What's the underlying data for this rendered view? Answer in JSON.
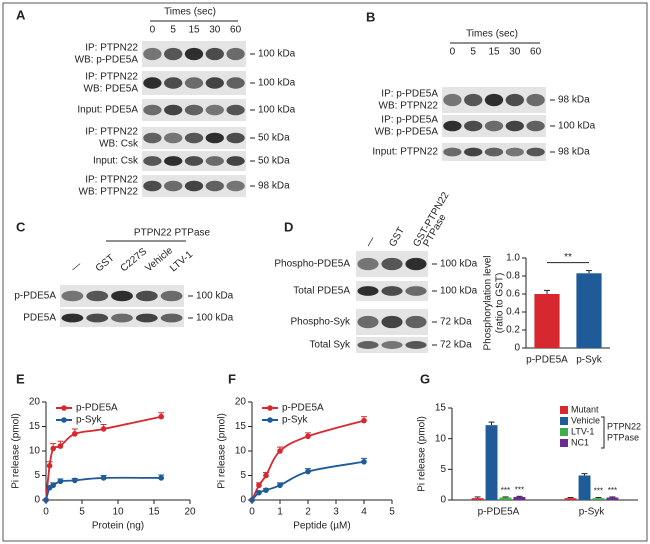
{
  "blots": [
    {
      "letter": "A",
      "header": "Times (sec)",
      "lanes": [
        "0",
        "5",
        "15",
        "30",
        "60"
      ],
      "rows": [
        {
          "label": [
            "IP: PTPN22",
            "WB: p-PDE5A"
          ],
          "marker": "100 kDa"
        },
        {
          "label": [
            "IP: PTPN22",
            "WB: PDE5A"
          ],
          "marker": "100 kDa"
        },
        {
          "label": [
            "Input: PDE5A"
          ],
          "marker": "100 kDa"
        },
        {
          "label": [
            "IP: PTPN22",
            "WB: Csk"
          ],
          "marker": "50 kDa"
        },
        {
          "label": [
            "Input: Csk"
          ],
          "marker": "50 kDa"
        },
        {
          "label": [
            "IP: PTPN22",
            "WB: PTPN22"
          ],
          "marker": "98 kDa"
        }
      ]
    },
    {
      "letter": "B",
      "header": "Times (sec)",
      "lanes": [
        "0",
        "5",
        "15",
        "30",
        "60"
      ],
      "rows": [
        {
          "label": [
            "IP: p-PDE5A",
            "WB: PTPN22"
          ],
          "marker": "98 kDa"
        },
        {
          "label": [
            "IP: p-PDE5A",
            "WB: p-PDE5A"
          ],
          "marker": "100 kDa"
        },
        {
          "label": [
            "Input: PTPN22"
          ],
          "marker": "98 kDa"
        }
      ]
    },
    {
      "letter": "C",
      "header": "PTPN22 PTPase",
      "lanes": [
        "—",
        "GST",
        "C227S",
        "Vehicle",
        "LTV-1"
      ],
      "rows": [
        {
          "label": [
            "p-PDE5A"
          ],
          "marker": "100 kDa"
        },
        {
          "label": [
            "PDE5A"
          ],
          "marker": "100 kDa"
        }
      ]
    },
    {
      "letter": "D",
      "lanes": [
        "—",
        "GST",
        [
          "GST-PTPN22",
          "PTPase"
        ]
      ],
      "rows": [
        {
          "label": [
            "Phospho-PDE5A"
          ],
          "marker": "100 kDa"
        },
        {
          "label": [
            "Total PDE5A"
          ],
          "marker": "100 kDa"
        },
        {
          "label": [
            "Phospho-Syk"
          ],
          "marker": "72 kDa"
        },
        {
          "label": [
            "Total Syk"
          ],
          "marker": "72 kDa"
        }
      ]
    }
  ],
  "chart_data": [
    {
      "type": "bar",
      "categories": [
        "p-PDE5A",
        "p-Syk"
      ],
      "values": [
        0.6,
        0.83
      ],
      "errors": [
        0.04,
        0.03
      ],
      "colors": [
        "#d7282f",
        "#1f5b99"
      ],
      "ylabel": [
        "Phosphorylation level",
        "(ratio to GST)"
      ],
      "ylim": [
        0,
        1
      ],
      "yticks": [
        0,
        0.2,
        0.4,
        0.6,
        0.8,
        {
          "value": 1,
          "label": "1.0"
        }
      ],
      "annotation": "**"
    },
    {
      "type": "scatter",
      "letter": "E",
      "xlabel": "Protein (ng)",
      "ylabel": "Pi release (pmol)",
      "x": [
        0,
        0.5,
        1,
        2,
        4,
        8,
        16
      ],
      "series": [
        {
          "name": "p-PDE5A",
          "color": "#d7282f",
          "values": [
            0,
            7,
            10.5,
            11,
            13.5,
            14.5,
            17
          ],
          "errors": [
            0,
            0.8,
            1,
            1,
            1,
            0.9,
            0.8
          ]
        },
        {
          "name": "p-Syk",
          "color": "#1f5b99",
          "values": [
            0,
            2.5,
            3,
            3.8,
            4,
            4.5,
            4.5
          ],
          "errors": [
            0,
            0.4,
            0.5,
            0.5,
            0.4,
            0.5,
            0.6
          ]
        }
      ],
      "xlim": [
        0,
        20
      ],
      "xticks": [
        0,
        5,
        10,
        15,
        20
      ],
      "ylim": [
        0,
        20
      ],
      "yticks": [
        0,
        5,
        10,
        15,
        20
      ]
    },
    {
      "type": "scatter",
      "letter": "F",
      "xlabel": "Peptide (µM)",
      "ylabel": "Pi release (pmol)",
      "x": [
        0,
        0.25,
        0.5,
        1,
        2,
        4
      ],
      "series": [
        {
          "name": "p-PDE5A",
          "color": "#d7282f",
          "values": [
            0,
            3,
            5,
            10,
            13,
            16.2
          ],
          "errors": [
            0,
            0.5,
            0.6,
            0.8,
            0.7,
            0.8
          ]
        },
        {
          "name": "p-Syk",
          "color": "#1f5b99",
          "values": [
            0,
            1.5,
            2,
            3,
            5.8,
            7.8
          ],
          "errors": [
            0,
            0.3,
            0.3,
            0.5,
            0.6,
            0.7
          ]
        }
      ],
      "xlim": [
        0,
        5
      ],
      "xticks": [
        0,
        1,
        2,
        3,
        4,
        5
      ],
      "ylim": [
        0,
        20
      ],
      "yticks": [
        0,
        5,
        10,
        15,
        20
      ]
    },
    {
      "type": "grouped_bar",
      "letter": "G",
      "ylabel": "Pi release (pmol)",
      "categories": [
        "p-PDE5A",
        "p-Syk"
      ],
      "legend_group": [
        "PTPN22",
        "PTPase"
      ],
      "series": [
        {
          "name": "Mutant",
          "color": "#d7282f",
          "values": [
            0.3,
            0.3
          ],
          "errors": [
            0.2,
            0.1
          ]
        },
        {
          "name": "Vehicle",
          "color": "#1f5b99",
          "values": [
            12.2,
            4
          ],
          "errors": [
            0.5,
            0.3
          ]
        },
        {
          "name": "LTV-1",
          "color": "#3fae49",
          "values": [
            0.4,
            0.3
          ],
          "errors": [
            0.1,
            0.1
          ]
        },
        {
          "name": "NC1",
          "color": "#6a2c8e",
          "values": [
            0.5,
            0.4
          ],
          "errors": [
            0.1,
            0.1
          ]
        }
      ],
      "annotation": "***",
      "ylim": [
        0,
        15
      ],
      "yticks": [
        0,
        5,
        10,
        15
      ]
    }
  ]
}
